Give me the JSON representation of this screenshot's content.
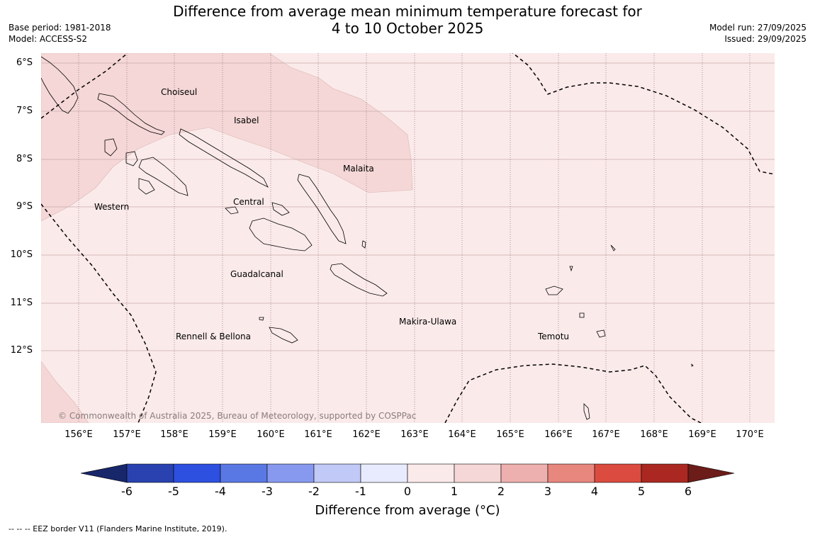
{
  "title": {
    "line1": "Difference from average mean minimum temperature forecast for",
    "line2": "4 to 10 October 2025"
  },
  "meta": {
    "base_period": "Base period: 1981-2018",
    "model": "Model: ACCESS-S2",
    "model_run": "Model run: 27/09/2025",
    "issued": "Issued: 29/09/2025"
  },
  "axes": {
    "lat_labels": [
      "6°S",
      "7°S",
      "8°S",
      "9°S",
      "10°S",
      "11°S",
      "12°S"
    ],
    "lon_labels": [
      "156°E",
      "157°E",
      "158°E",
      "159°E",
      "160°E",
      "161°E",
      "162°E",
      "163°E",
      "164°E",
      "165°E",
      "166°E",
      "167°E",
      "168°E",
      "169°E",
      "170°E"
    ]
  },
  "places": {
    "choiseul": "Choiseul",
    "isabel": "Isabel",
    "malaita": "Malaita",
    "western": "Western",
    "central": "Central",
    "guadalcanal": "Guadalcanal",
    "makira": "Makira-Ulawa",
    "rennell": "Rennell & Bellona",
    "temotu": "Temotu"
  },
  "copyright": "© Commonwealth of Australia 2025, Bureau of Meteorology, supported by COSPPac",
  "colorbar": {
    "label": "Difference from average (°C)",
    "ticks": [
      "-6",
      "-5",
      "-4",
      "-3",
      "-2",
      "-1",
      "0",
      "1",
      "2",
      "3",
      "4",
      "5",
      "6"
    ],
    "colors": {
      "below_min": "#18266a",
      "n6_n5": "#2a42b0",
      "n5_n4": "#2d50e0",
      "n4_n3": "#5a78e4",
      "n3_n2": "#8799ee",
      "n2_n1": "#c1c9f6",
      "n1_0": "#e7ebfd",
      "0_1": "#fbeaea",
      "1_2": "#f4d7d6",
      "2_3": "#eeb0ae",
      "3_4": "#e7877e",
      "4_5": "#dc4b3f",
      "5_6": "#aa2821",
      "above_max": "#6c1c19"
    }
  },
  "map_fill": {
    "anomaly_0_1": "#fbeaea",
    "anomaly_1_2": "#f4d7d6"
  },
  "eez_note": "-- -- -- EEZ border V11 (Flanders Marine Institute, 2019)."
}
